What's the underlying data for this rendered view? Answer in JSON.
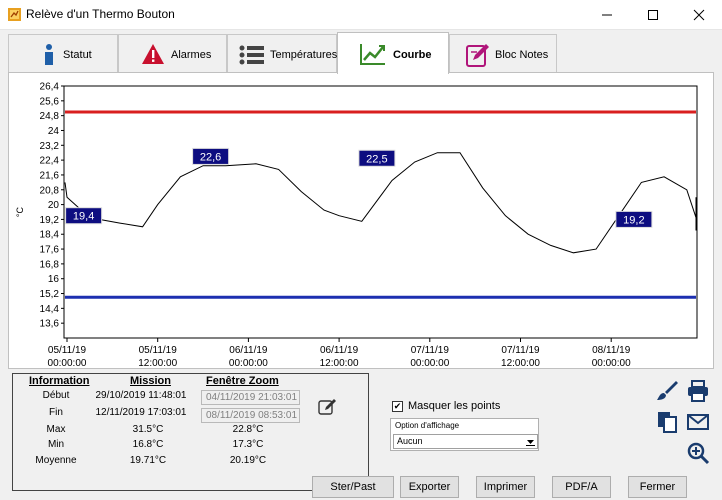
{
  "window": {
    "title": "Relève d'un Thermo Bouton"
  },
  "tabs": [
    {
      "label": "Statut",
      "icon": "info-icon"
    },
    {
      "label": "Alarmes",
      "icon": "warning-icon"
    },
    {
      "label": "Températures",
      "icon": "list-icon"
    },
    {
      "label": "Courbe",
      "icon": "chart-icon",
      "active": true
    },
    {
      "label": "Bloc Notes",
      "icon": "notepad-icon"
    }
  ],
  "chart_data": {
    "type": "line",
    "ylabel": "°C",
    "ylim": [
      12.8,
      26.4
    ],
    "yticks": [
      "26,4",
      "25,6",
      "24,8",
      "24",
      "23,2",
      "22,4",
      "21,6",
      "20,8",
      "20",
      "19,2",
      "18,4",
      "17,6",
      "16,8",
      "16",
      "15,2",
      "14,4",
      "13,6"
    ],
    "xticks": [
      {
        "date": "05/11/19",
        "time": "00:00:00"
      },
      {
        "date": "05/11/19",
        "time": "12:00:00"
      },
      {
        "date": "06/11/19",
        "time": "00:00:00"
      },
      {
        "date": "06/11/19",
        "time": "12:00:00"
      },
      {
        "date": "07/11/19",
        "time": "00:00:00"
      },
      {
        "date": "07/11/19",
        "time": "12:00:00"
      },
      {
        "date": "08/11/19",
        "time": "00:00:00"
      }
    ],
    "x_hours_from_first_tick": [
      -1,
      0,
      3,
      7,
      10,
      12,
      15,
      18,
      21,
      25,
      28,
      31,
      34,
      36,
      39,
      43,
      46,
      49,
      52,
      55,
      58,
      61,
      64,
      67,
      70,
      73,
      76,
      79,
      82,
      85,
      88,
      91,
      94,
      96
    ],
    "y": [
      21.2,
      20.4,
      19.3,
      19.0,
      18.8,
      20.0,
      21.5,
      22.1,
      22.1,
      22.2,
      21.9,
      20.7,
      19.7,
      19.4,
      19.1,
      21.3,
      22.3,
      22.8,
      22.8,
      20.9,
      19.4,
      18.4,
      17.8,
      17.4,
      17.6,
      19.4,
      21.2,
      21.5,
      20.8,
      19.3,
      19.0,
      18.9,
      18.6,
      20.4
    ],
    "high_threshold": 25.0,
    "low_threshold": 15.0,
    "threshold_colors": {
      "high": "#d91f1f",
      "low": "#1c2fb0"
    },
    "labels": [
      {
        "text": "19,4"
      },
      {
        "text": "22,6"
      },
      {
        "text": "22,5"
      },
      {
        "text": "19,2"
      }
    ],
    "grid": false,
    "label_bg": "#0d0d80"
  },
  "info": {
    "headers": {
      "information": "Information",
      "mission": "Mission",
      "zoom": "Fenêtre Zoom"
    },
    "rows": [
      {
        "label": "Début",
        "mission": "29/10/2019 11:48:01",
        "zoom": "04/11/2019 21:03:01"
      },
      {
        "label": "Fin",
        "mission": "12/11/2019 17:03:01",
        "zoom": "08/11/2019 08:53:01"
      },
      {
        "label": "Max",
        "mission": "31.5°C",
        "zoom": "22.8°C"
      },
      {
        "label": "Min",
        "mission": "16.8°C",
        "zoom": "17.3°C"
      },
      {
        "label": "Moyenne",
        "mission": "19.71°C",
        "zoom": "20.19°C"
      }
    ]
  },
  "options": {
    "hide_points_label": "Masquer les points",
    "hide_points_checked": true,
    "display_option_legend": "Option d'affichage",
    "display_option_value": "Aucun"
  },
  "buttons": {
    "copy": "Ster/Past",
    "export": "Exporter",
    "print": "Imprimer",
    "pdfa": "PDF/A",
    "close": "Fermer"
  }
}
